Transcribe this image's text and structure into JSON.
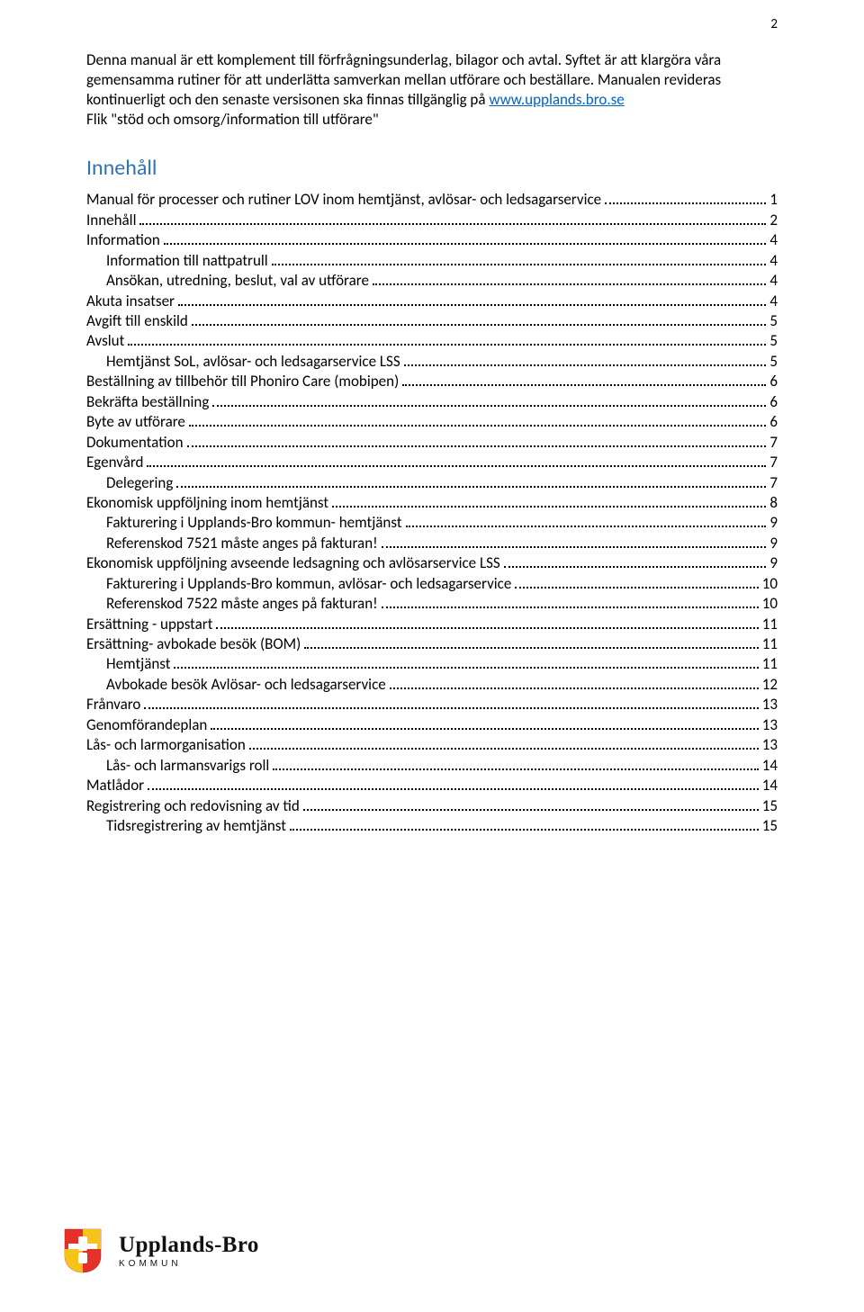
{
  "page_number": "2",
  "intro": {
    "p1": "Denna manual är ett komplement till förfrågningsunderlag, bilagor och avtal. Syftet är att klargöra våra gemensamma rutiner för att underlätta samverkan mellan utförare och beställare. Manualen revideras kontinuerligt och den senaste versisonen ska finnas tillgänglig på ",
    "link_text": "www.upplands.bro.se",
    "p2": "Flik \"stöd och omsorg/information till utförare\""
  },
  "toc_heading": "Innehåll",
  "toc": [
    {
      "label": "Manual för processer och rutiner LOV inom hemtjänst, avlösar- och ledsagarservice",
      "page": "1",
      "indent": 0
    },
    {
      "label": "Innehåll",
      "page": "2",
      "indent": 0
    },
    {
      "label": "Information",
      "page": "4",
      "indent": 0
    },
    {
      "label": "Information till nattpatrull",
      "page": "4",
      "indent": 1
    },
    {
      "label": "Ansökan, utredning, beslut, val av utförare",
      "page": "4",
      "indent": 1
    },
    {
      "label": "Akuta insatser",
      "page": "4",
      "indent": 0
    },
    {
      "label": "Avgift till enskild",
      "page": "5",
      "indent": 0
    },
    {
      "label": "Avslut",
      "page": "5",
      "indent": 0
    },
    {
      "label": "Hemtjänst SoL, avlösar- och ledsagarservice LSS",
      "page": "5",
      "indent": 1
    },
    {
      "label": "Beställning av tillbehör till Phoniro Care (mobipen)",
      "page": "6",
      "indent": 0
    },
    {
      "label": "Bekräfta beställning",
      "page": "6",
      "indent": 0
    },
    {
      "label": "Byte av utförare",
      "page": "6",
      "indent": 0
    },
    {
      "label": "Dokumentation",
      "page": "7",
      "indent": 0
    },
    {
      "label": "Egenvård",
      "page": "7",
      "indent": 0
    },
    {
      "label": "Delegering",
      "page": "7",
      "indent": 1
    },
    {
      "label": "Ekonomisk uppföljning inom hemtjänst",
      "page": "8",
      "indent": 0
    },
    {
      "label": "Fakturering i Upplands-Bro kommun- hemtjänst",
      "page": "9",
      "indent": 1
    },
    {
      "label": "Referenskod 7521 måste anges på fakturan!",
      "page": "9",
      "indent": 1
    },
    {
      "label": "Ekonomisk uppföljning avseende ledsagning och avlösarservice LSS",
      "page": "9",
      "indent": 0
    },
    {
      "label": "Fakturering i Upplands-Bro kommun, avlösar- och ledsagarservice",
      "page": "10",
      "indent": 1
    },
    {
      "label": "Referenskod 7522 måste anges på fakturan!",
      "page": "10",
      "indent": 1
    },
    {
      "label": "Ersättning - uppstart",
      "page": "11",
      "indent": 0
    },
    {
      "label": "Ersättning- avbokade besök (BOM)",
      "page": "11",
      "indent": 0
    },
    {
      "label": "Hemtjänst",
      "page": "11",
      "indent": 1
    },
    {
      "label": "Avbokade besök Avlösar- och ledsagarservice",
      "page": "12",
      "indent": 1
    },
    {
      "label": "Frånvaro",
      "page": "13",
      "indent": 0
    },
    {
      "label": "Genomförandeplan",
      "page": "13",
      "indent": 0
    },
    {
      "label": "Lås- och larmorganisation",
      "page": "13",
      "indent": 0
    },
    {
      "label": "Lås- och larmansvarigs roll",
      "page": "14",
      "indent": 1
    },
    {
      "label": "Matlådor",
      "page": "14",
      "indent": 0
    },
    {
      "label": "Registrering och redovisning av tid",
      "page": "15",
      "indent": 0
    },
    {
      "label": "Tidsregistrering av hemtjänst",
      "page": "15",
      "indent": 1
    }
  ],
  "footer": {
    "brand_name": "Upplands-Bro",
    "brand_sub": "KOMMUN",
    "shield": {
      "bg": "#e4322b",
      "accent": "#f6c21c",
      "inner": "#ffffff"
    }
  },
  "colors": {
    "text": "#000000",
    "heading": "#2e74b5",
    "link": "#0563c1",
    "background": "#ffffff"
  },
  "typography": {
    "body_fontsize_pt": 12,
    "heading_fontsize_pt": 18,
    "font_family": "Calibri"
  }
}
